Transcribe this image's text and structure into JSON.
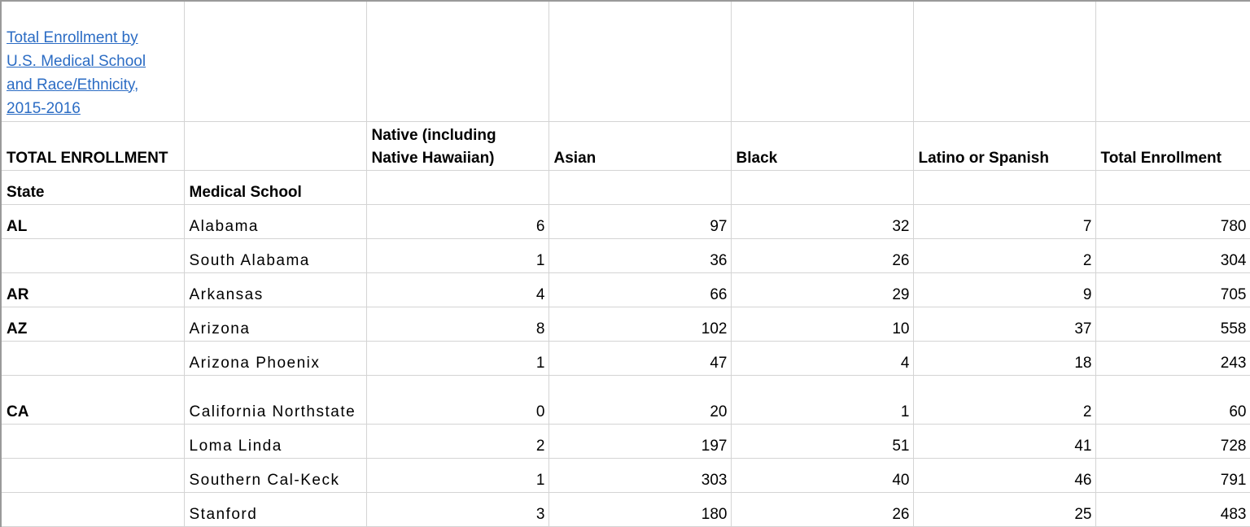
{
  "title": "Total Enrollment by U.S. Medical School and Race/Ethnicity, 2015-2016",
  "header": {
    "section_label": "TOTAL ENROLLMENT",
    "col_native": "Native (including Native Hawaiian)",
    "col_asian": "Asian",
    "col_black": "Black",
    "col_latino": "Latino or Spanish",
    "col_total": "Total Enrollment",
    "col_state": "State",
    "col_school": "Medical School"
  },
  "rows": [
    {
      "state": "AL",
      "school": "Alabama",
      "native": "6",
      "asian": "97",
      "black": "32",
      "latino": "7",
      "total": "780"
    },
    {
      "state": "",
      "school": "South Alabama",
      "native": "1",
      "asian": "36",
      "black": "26",
      "latino": "2",
      "total": "304"
    },
    {
      "state": "AR",
      "school": "Arkansas",
      "native": "4",
      "asian": "66",
      "black": "29",
      "latino": "9",
      "total": "705"
    },
    {
      "state": "AZ",
      "school": "Arizona",
      "native": "8",
      "asian": "102",
      "black": "10",
      "latino": "37",
      "total": "558"
    },
    {
      "state": "",
      "school": "Arizona Phoenix",
      "native": "1",
      "asian": "47",
      "black": "4",
      "latino": "18",
      "total": "243"
    },
    {
      "state": "CA",
      "school": "California Northstate",
      "native": "0",
      "asian": "20",
      "black": "1",
      "latino": "2",
      "total": "60"
    },
    {
      "state": "",
      "school": "Loma Linda",
      "native": "2",
      "asian": "197",
      "black": "51",
      "latino": "41",
      "total": "728"
    },
    {
      "state": "",
      "school": "Southern Cal-Keck",
      "native": "1",
      "asian": "303",
      "black": "40",
      "latino": "46",
      "total": "791"
    },
    {
      "state": "",
      "school": "Stanford",
      "native": "3",
      "asian": "180",
      "black": "26",
      "latino": "25",
      "total": "483"
    }
  ]
}
